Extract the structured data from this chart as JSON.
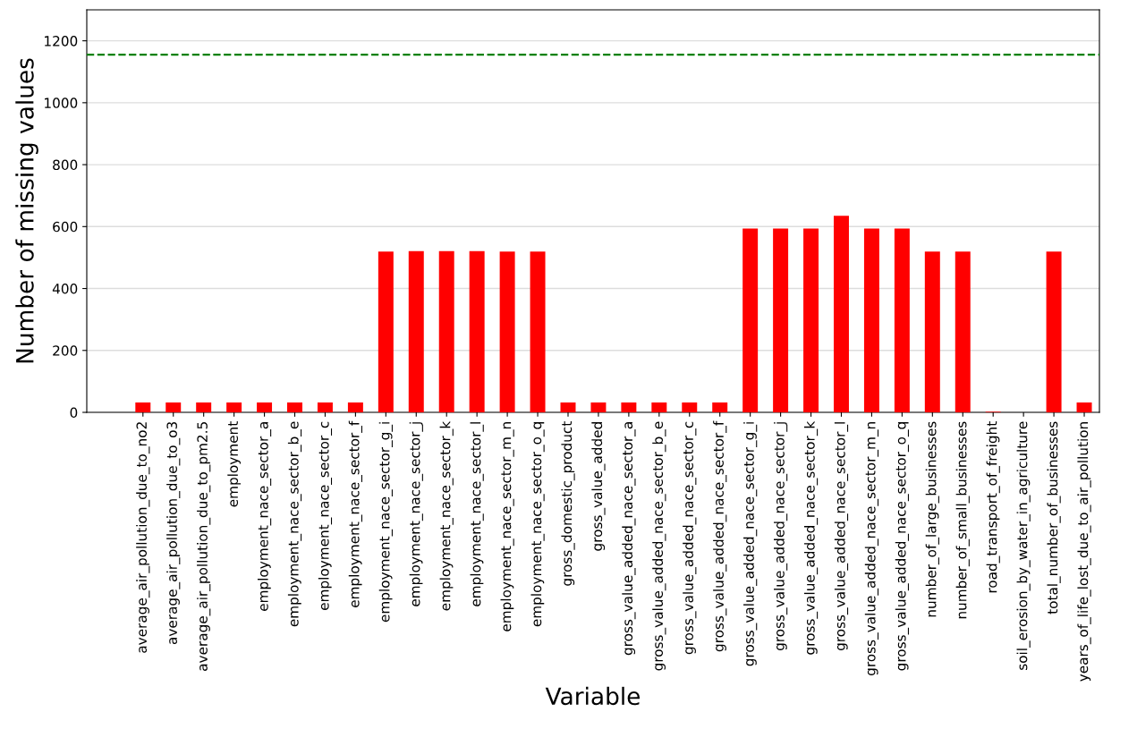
{
  "chart_data": {
    "type": "bar",
    "xlabel": "Variable",
    "ylabel": "Number of missing values",
    "categories": [
      "average_air_pollution_due_to_no2",
      "average_air_pollution_due_to_o3",
      "average_air_pollution_due_to_pm2.5",
      "employment",
      "employment_nace_sector_a",
      "employment_nace_sector_b_e",
      "employment_nace_sector_c",
      "employment_nace_sector_f",
      "employment_nace_sector_g_i",
      "employment_nace_sector_j",
      "employment_nace_sector_k",
      "employment_nace_sector_l",
      "employment_nace_sector_m_n",
      "employment_nace_sector_o_q",
      "gross_domestic_product",
      "gross_value_added",
      "gross_value_added_nace_sector_a",
      "gross_value_added_nace_sector_b_e",
      "gross_value_added_nace_sector_c",
      "gross_value_added_nace_sector_f",
      "gross_value_added_nace_sector_g_i",
      "gross_value_added_nace_sector_j",
      "gross_value_added_nace_sector_k",
      "gross_value_added_nace_sector_l",
      "gross_value_added_nace_sector_m_n",
      "gross_value_added_nace_sector_o_q",
      "number_of_large_businesses",
      "number_of_small_businesses",
      "road_transport_of_freight",
      "soil_erosion_by_water_in_agriculture",
      "total_number_of_businesses",
      "years_of_life_lost_due_to_air_pollution"
    ],
    "values": [
      32,
      32,
      32,
      32,
      32,
      32,
      32,
      32,
      519,
      521,
      521,
      521,
      519,
      519,
      32,
      32,
      32,
      32,
      32,
      32,
      594,
      594,
      594,
      635,
      594,
      594,
      519,
      519,
      2,
      0,
      519,
      32
    ],
    "color": "#ff0000",
    "ylim": [
      0,
      1300
    ],
    "yticks": [
      0,
      200,
      400,
      600,
      800,
      1000,
      1200
    ],
    "grid": "y",
    "ref_lines": [
      {
        "axis": "y",
        "value": 1155,
        "color": "#008000",
        "line_style": "dashed"
      }
    ]
  }
}
